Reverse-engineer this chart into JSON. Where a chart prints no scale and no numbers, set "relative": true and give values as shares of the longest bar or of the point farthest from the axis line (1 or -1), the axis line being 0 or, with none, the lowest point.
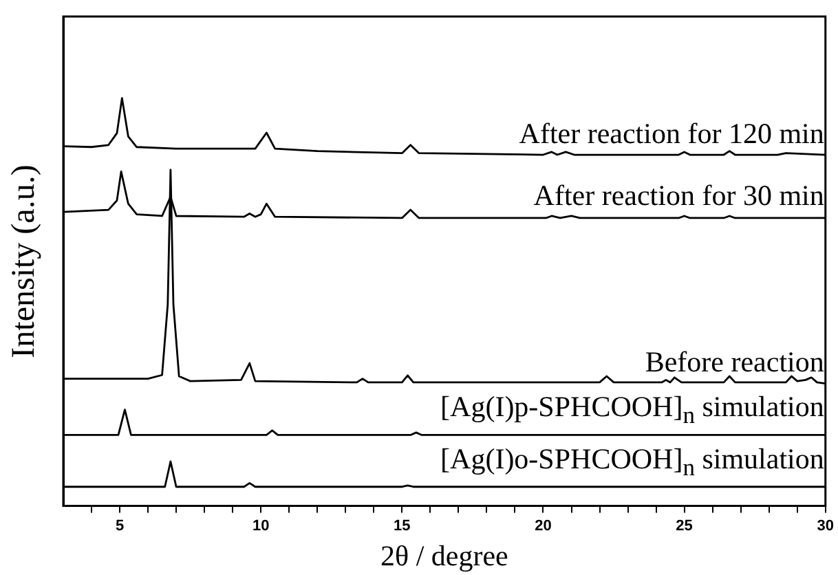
{
  "chart_data": {
    "type": "line",
    "relative": true,
    "xlabel": "2θ / degree",
    "ylabel": "Intensity (a.u.)",
    "xlim": [
      3,
      30
    ],
    "xticks": [
      {
        "value": 4,
        "label": null
      },
      5,
      {
        "value": 6,
        "label": null
      },
      {
        "value": 7,
        "label": null
      },
      {
        "value": 8,
        "label": null
      },
      {
        "value": 9,
        "label": null
      },
      10,
      {
        "value": 11,
        "label": null
      },
      {
        "value": 12,
        "label": null
      },
      {
        "value": 13,
        "label": null
      },
      {
        "value": 14,
        "label": null
      },
      15,
      {
        "value": 16,
        "label": null
      },
      {
        "value": 17,
        "label": null
      },
      {
        "value": 18,
        "label": null
      },
      {
        "value": 19,
        "label": null
      },
      20,
      {
        "value": 21,
        "label": null
      },
      {
        "value": 22,
        "label": null
      },
      {
        "value": 23,
        "label": null
      },
      {
        "value": 24,
        "label": null
      },
      25,
      {
        "value": 26,
        "label": null
      },
      {
        "value": 27,
        "label": null
      },
      {
        "value": 28,
        "label": null
      },
      {
        "value": 29,
        "label": null
      },
      30
    ],
    "grid": false,
    "legend": false,
    "marker": "none",
    "line_style": "solid",
    "series": [
      {
        "name": "After reaction for 120 min",
        "color": "#000000",
        "x": [
          3,
          4,
          4.6,
          4.9,
          5.08,
          5.3,
          5.6,
          7,
          9.8,
          10.2,
          10.5,
          12,
          15.0,
          15.3,
          15.6,
          20,
          20.3,
          20.5,
          20.8,
          21.1,
          24.8,
          25,
          25.2,
          26.4,
          26.6,
          26.8,
          28.3,
          28.6,
          30
        ],
        "values": [
          0.882,
          0.88,
          0.885,
          0.914,
          1.0,
          0.906,
          0.88,
          0.876,
          0.876,
          0.915,
          0.876,
          0.87,
          0.865,
          0.885,
          0.865,
          0.861,
          0.868,
          0.861,
          0.868,
          0.861,
          0.861,
          0.868,
          0.861,
          0.861,
          0.87,
          0.861,
          0.861,
          0.865,
          0.861
        ]
      },
      {
        "name": "After reaction for 30 min",
        "color": "#000000",
        "x": [
          3,
          4.6,
          4.9,
          5.05,
          5.3,
          5.6,
          6.5,
          6.8,
          7.0,
          9.4,
          9.6,
          9.8,
          10.0,
          10.2,
          10.5,
          15.0,
          15.3,
          15.6,
          20.1,
          20.3,
          20.6,
          21.0,
          21.3,
          24.8,
          25,
          25.2,
          26.4,
          26.6,
          26.8,
          30
        ],
        "values": [
          0.721,
          0.726,
          0.749,
          0.82,
          0.741,
          0.715,
          0.711,
          0.758,
          0.711,
          0.709,
          0.717,
          0.709,
          0.715,
          0.741,
          0.709,
          0.706,
          0.726,
          0.706,
          0.706,
          0.711,
          0.706,
          0.711,
          0.706,
          0.706,
          0.711,
          0.706,
          0.706,
          0.711,
          0.706,
          0.706
        ]
      },
      {
        "name": "Before reaction",
        "color": "#000000",
        "x": [
          3,
          6.0,
          6.5,
          6.7,
          6.8,
          6.9,
          7.1,
          7.5,
          9.3,
          9.6,
          9.8,
          13.4,
          13.6,
          13.8,
          15.0,
          15.2,
          15.4,
          22.0,
          22.25,
          22.5,
          24.2,
          24.35,
          24.5,
          24.65,
          24.9,
          26.4,
          26.6,
          26.8,
          28.6,
          28.8,
          29.0,
          29.3,
          29.5,
          29.7,
          30
        ],
        "values": [
          0.312,
          0.312,
          0.321,
          0.494,
          0.824,
          0.494,
          0.318,
          0.306,
          0.309,
          0.35,
          0.306,
          0.303,
          0.312,
          0.303,
          0.303,
          0.32,
          0.303,
          0.303,
          0.318,
          0.303,
          0.303,
          0.309,
          0.303,
          0.315,
          0.303,
          0.303,
          0.318,
          0.303,
          0.303,
          0.318,
          0.306,
          0.309,
          0.315,
          0.303,
          0.3
        ]
      },
      {
        "name": "[Ag(I)p-SPHCOOH]$_{n}$ simulation",
        "color": "#000000",
        "x": [
          3,
          4.95,
          5.18,
          5.4,
          10.2,
          10.4,
          10.6,
          15.3,
          15.5,
          15.7,
          30
        ],
        "values": [
          0.174,
          0.174,
          0.236,
          0.174,
          0.174,
          0.185,
          0.174,
          0.174,
          0.18,
          0.174,
          0.174
        ]
      },
      {
        "name": "[Ag(I)o-SPHCOOH]$_{n}$ simulation",
        "color": "#000000",
        "x": [
          3,
          6.6,
          6.8,
          7.0,
          9.4,
          9.6,
          9.8,
          15.0,
          15.2,
          15.4,
          30
        ],
        "values": [
          0.047,
          0.047,
          0.109,
          0.047,
          0.047,
          0.056,
          0.047,
          0.047,
          0.05,
          0.047,
          0.047
        ]
      }
    ]
  }
}
